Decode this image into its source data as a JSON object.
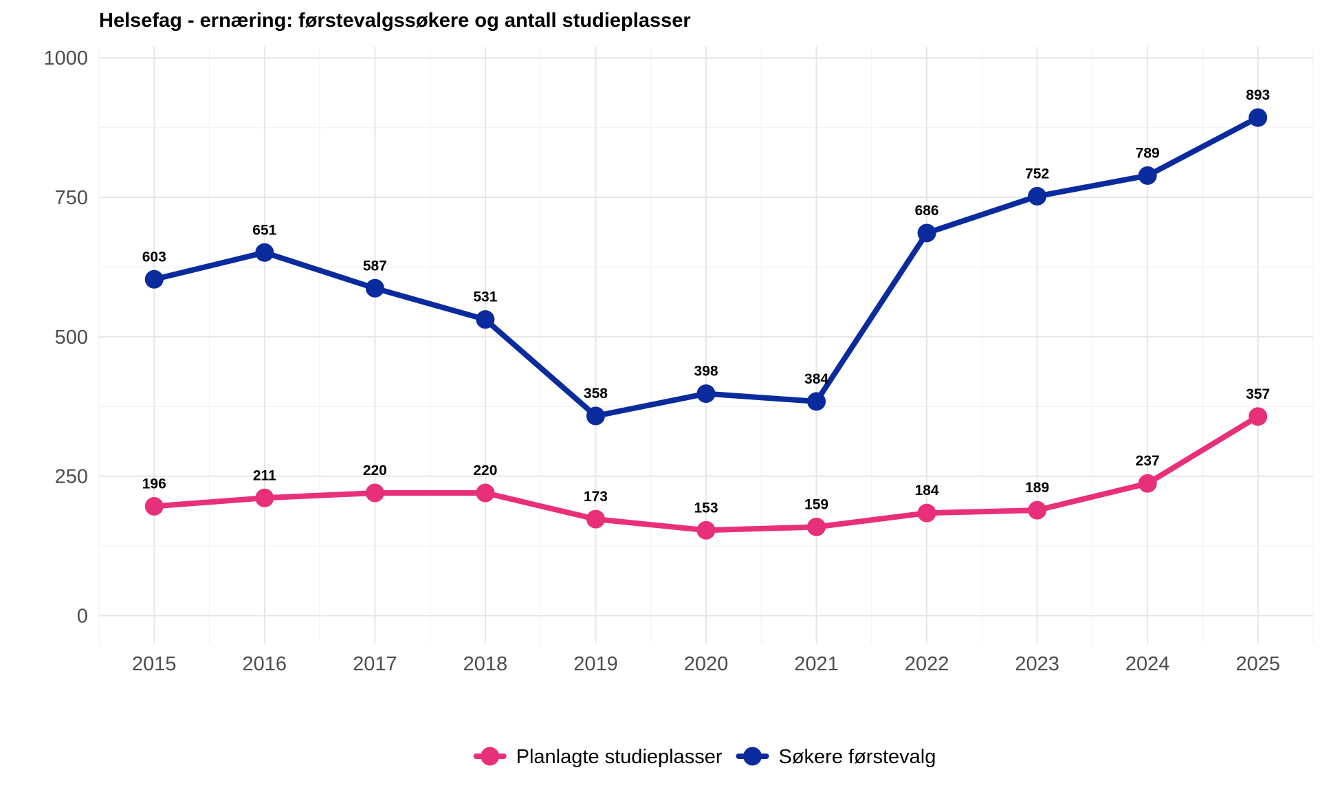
{
  "chart_data": {
    "type": "line",
    "title": "Helsefag - ernæring: førstevalgssøkere og antall studieplasser",
    "x": [
      2015,
      2016,
      2017,
      2018,
      2019,
      2020,
      2021,
      2022,
      2023,
      2024,
      2025
    ],
    "x_tick_labels": [
      "2015",
      "2016",
      "2017",
      "2018",
      "2019",
      "2020",
      "2021",
      "2022",
      "2023",
      "2024",
      "2025"
    ],
    "y_ticks": [
      0,
      250,
      500,
      750,
      1000
    ],
    "y_tick_labels": [
      "0",
      "250",
      "500",
      "750",
      "1000"
    ],
    "ylim": [
      -50,
      1020
    ],
    "xlim": [
      2014.5,
      2025.5
    ],
    "grid": true,
    "legend_position": "bottom",
    "data_labels": true,
    "series": [
      {
        "name": "Planlagte studieplasser",
        "color": "#E8307A",
        "values": [
          196,
          211,
          220,
          220,
          173,
          153,
          159,
          184,
          189,
          237,
          357
        ]
      },
      {
        "name": "Søkere førstevalg",
        "color": "#0A2B9E",
        "values": [
          603,
          651,
          587,
          531,
          358,
          398,
          384,
          686,
          752,
          789,
          893
        ]
      }
    ]
  }
}
